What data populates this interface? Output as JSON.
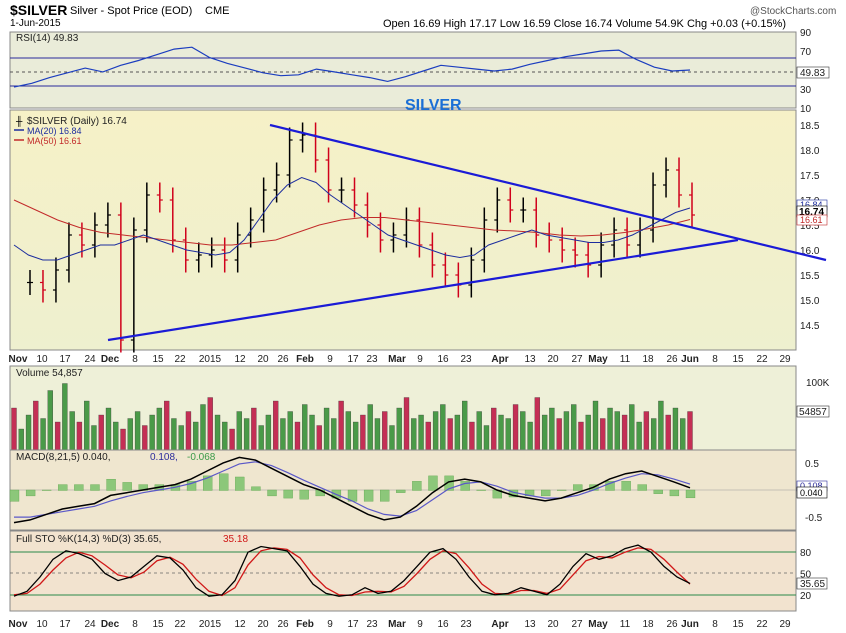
{
  "header": {
    "symbol": "$SILVER",
    "name": "Silver - Spot Price (EOD)",
    "exchange": "CME",
    "date": "1-Jun-2015",
    "ohlc": "Open 16.69  High 17.17  Low 16.59  Close 16.74  Volume 54.9K  Chg +0.03 (+0.15%)",
    "watermark": "@StockCharts.com",
    "annotation": "SILVER"
  },
  "colors": {
    "price_bg": "#f3f1c9",
    "panel_bg": "#e9ecd6",
    "volume_bg": "#eef0d8",
    "macd_bg": "#efe6cf",
    "sto_bg": "#f2e3cf",
    "up_bar": "#000000",
    "down_bar": "#d0001b",
    "ma20": "#1d2d9e",
    "ma50": "#c22a2a",
    "trendline": "#1b1bd6",
    "rsi_line": "#1b3dbf",
    "vol_up": "#4a9a48",
    "vol_down": "#c42f55"
  },
  "chart_data": [
    {
      "type": "line",
      "name": "rsi",
      "legend": "RSI(14) 49.83",
      "last_label": "49.83",
      "ylim": [
        10,
        90
      ],
      "yticks": [
        "90",
        "70",
        "50",
        "30",
        "10"
      ],
      "values": [
        32,
        36,
        42,
        47,
        52,
        48,
        55,
        60,
        66,
        72,
        74,
        63,
        57,
        52,
        47,
        44,
        45,
        51,
        48,
        45,
        42,
        38,
        43,
        49,
        55,
        53,
        51,
        49,
        51,
        56,
        60,
        64,
        67,
        70,
        71,
        61,
        53,
        49,
        50
      ]
    },
    {
      "type": "ohlc",
      "name": "price",
      "legend_symbol": "$SILVER (Daily) 16.74",
      "legend_ma20": "MA(20) 16.84",
      "legend_ma50": "MA(50) 16.61",
      "ylim": [
        14.0,
        18.8
      ],
      "yticks": [
        "18.5",
        "18.0",
        "17.5",
        "17.0",
        "16.5",
        "16.0",
        "15.5",
        "15.0",
        "14.5"
      ],
      "last_labels": [
        "16.84",
        "16.74",
        "16.61"
      ],
      "xticks": [
        "Nov",
        "10",
        "17",
        "24",
        "Dec",
        "8",
        "15",
        "22",
        "2015",
        "12",
        "20",
        "26",
        "Feb",
        "9",
        "17",
        "23",
        "Mar",
        "9",
        "16",
        "23",
        "Apr",
        "13",
        "20",
        "27",
        "May",
        "11",
        "18",
        "26",
        "Jun",
        "8",
        "15",
        "22",
        "29"
      ],
      "closes": [
        15.35,
        15.2,
        15.6,
        16.3,
        16.1,
        16.5,
        16.7,
        14.2,
        16.4,
        17.1,
        17.0,
        16.2,
        15.8,
        15.9,
        16.0,
        15.8,
        16.3,
        16.6,
        17.2,
        17.5,
        18.2,
        18.3,
        17.8,
        17.2,
        17.2,
        16.9,
        16.5,
        16.2,
        16.3,
        16.6,
        16.1,
        15.7,
        15.5,
        15.3,
        15.8,
        16.6,
        17.0,
        16.8,
        16.8,
        16.3,
        16.2,
        16.0,
        15.9,
        15.7,
        16.1,
        16.4,
        16.1,
        16.4,
        17.3,
        17.6,
        17.1,
        16.7
      ],
      "ma20": [
        16.1,
        15.9,
        15.8,
        15.8,
        15.9,
        16.0,
        16.1,
        16.1,
        16.2,
        16.3,
        16.2,
        16.1,
        16.0,
        15.95,
        15.9,
        15.95,
        16.2,
        16.6,
        17.0,
        17.3,
        17.45,
        17.35,
        17.1,
        16.9,
        16.7,
        16.5,
        16.3,
        16.2,
        16.1,
        16.0,
        15.9,
        15.85,
        15.9,
        16.1,
        16.2,
        16.3,
        16.4,
        16.3,
        16.25,
        16.2,
        16.15,
        16.15,
        16.2,
        16.3,
        16.45,
        16.6,
        16.75,
        16.84
      ],
      "ma50": [
        17.0,
        16.8,
        16.6,
        16.45,
        16.35,
        16.3,
        16.25,
        16.2,
        16.15,
        16.1,
        16.1,
        16.15,
        16.2,
        16.35,
        16.5,
        16.6,
        16.65,
        16.65,
        16.6,
        16.55,
        16.5,
        16.45,
        16.4,
        16.38,
        16.35,
        16.3,
        16.28,
        16.3,
        16.35,
        16.42,
        16.5,
        16.61
      ],
      "trendlines": [
        {
          "from": [
            "Nov 25",
            14.2
          ],
          "to": [
            "Jun 15",
            16.2
          ]
        },
        {
          "from": [
            "Jan 21",
            18.5
          ],
          "to": [
            "Jun 30",
            15.8
          ]
        }
      ]
    },
    {
      "type": "bar",
      "name": "volume",
      "legend": "Volume 54,857",
      "last_label": "54857",
      "yticks": [
        "100K"
      ],
      "values": [
        60,
        30,
        50,
        70,
        45,
        85,
        40,
        95,
        55,
        40,
        70,
        35,
        50,
        60,
        40,
        30,
        45,
        55,
        35,
        50,
        60,
        70,
        45,
        35,
        55,
        40,
        65,
        75,
        50,
        40,
        30,
        55,
        45,
        60,
        35,
        50,
        70,
        45,
        55,
        40,
        65,
        50,
        35,
        60,
        45,
        70,
        55,
        40,
        50,
        65,
        45,
        55,
        35,
        60,
        75,
        45,
        50,
        40,
        55,
        65,
        45,
        50,
        70,
        40,
        55,
        35,
        60,
        50,
        45,
        65,
        55,
        40,
        75,
        50,
        60,
        45,
        55,
        65,
        40,
        50,
        70,
        45,
        60,
        55,
        50,
        65,
        40,
        55,
        45,
        70,
        50,
        60,
        45,
        55
      ]
    },
    {
      "type": "line",
      "name": "macd",
      "legend_macd": "MACD(8,21,5) 0.040,",
      "legend_signal": "0.108,",
      "legend_hist": "-0.068",
      "last_labels": [
        "0.108",
        "0.040"
      ],
      "ylim": [
        -0.7,
        0.7
      ],
      "yticks": [
        "0.5",
        "0.0",
        "-0.5"
      ],
      "macd": [
        -0.6,
        -0.55,
        -0.45,
        -0.35,
        -0.3,
        -0.25,
        -0.1,
        -0.05,
        0.0,
        0.05,
        0.1,
        0.2,
        0.35,
        0.5,
        0.6,
        0.55,
        0.4,
        0.25,
        0.1,
        0.0,
        -0.15,
        -0.3,
        -0.45,
        -0.55,
        -0.5,
        -0.3,
        -0.05,
        0.15,
        0.2,
        0.15,
        0.0,
        -0.1,
        -0.15,
        -0.2,
        -0.15,
        -0.05,
        0.05,
        0.2,
        0.3,
        0.35,
        0.25,
        0.15,
        0.04
      ],
      "signal": [
        -0.5,
        -0.5,
        -0.45,
        -0.4,
        -0.35,
        -0.3,
        -0.2,
        -0.12,
        -0.05,
        0.0,
        0.05,
        0.12,
        0.22,
        0.35,
        0.48,
        0.52,
        0.45,
        0.32,
        0.18,
        0.05,
        -0.08,
        -0.2,
        -0.35,
        -0.45,
        -0.48,
        -0.38,
        -0.18,
        0.02,
        0.12,
        0.15,
        0.07,
        -0.04,
        -0.1,
        -0.15,
        -0.15,
        -0.1,
        0.0,
        0.12,
        0.22,
        0.3,
        0.28,
        0.2,
        0.108
      ]
    },
    {
      "type": "line",
      "name": "full_sto",
      "legend_k": "Full STO %K(14,3) %D(3) 35.65,",
      "legend_d": "35.18",
      "last_label": "35.65",
      "ylim": [
        0,
        100
      ],
      "yticks": [
        "80",
        "50",
        "20"
      ],
      "k": [
        18,
        25,
        45,
        70,
        82,
        78,
        70,
        50,
        40,
        45,
        60,
        75,
        72,
        55,
        30,
        18,
        20,
        40,
        80,
        88,
        85,
        82,
        60,
        35,
        22,
        18,
        20,
        30,
        22,
        25,
        40,
        60,
        80,
        85,
        70,
        45,
        25,
        20,
        22,
        30,
        25,
        20,
        35,
        60,
        78,
        70,
        75,
        85,
        90,
        80,
        60,
        45,
        36
      ],
      "d": [
        20,
        22,
        35,
        55,
        72,
        80,
        75,
        62,
        48,
        44,
        52,
        68,
        73,
        63,
        42,
        25,
        19,
        30,
        62,
        82,
        86,
        84,
        72,
        48,
        30,
        20,
        19,
        24,
        25,
        24,
        32,
        50,
        70,
        82,
        78,
        58,
        35,
        22,
        21,
        26,
        26,
        22,
        28,
        48,
        68,
        74,
        72,
        80,
        86,
        84,
        70,
        52,
        35
      ]
    }
  ]
}
